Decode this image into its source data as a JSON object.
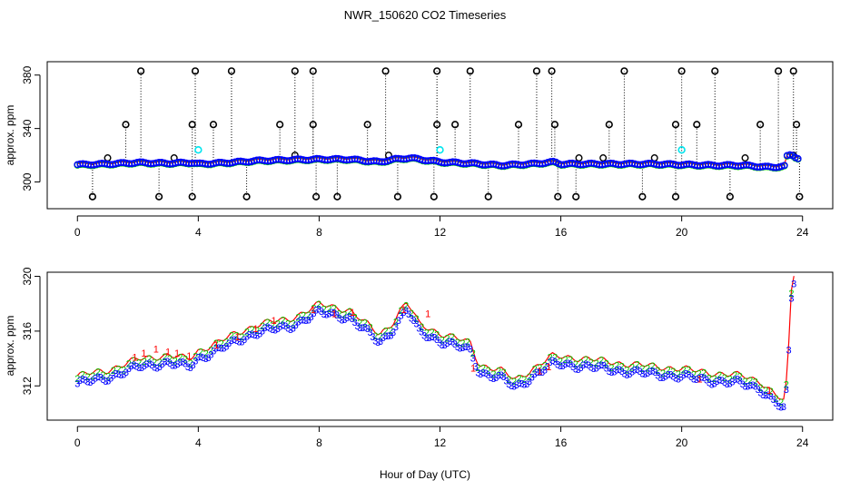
{
  "chart_data": {
    "title": "NWR_150620  CO2 Timeseries",
    "xlabel": "Hour of Day (UTC)",
    "colors": {
      "black": "#000000",
      "red": "#ff0000",
      "green": "#00cd00",
      "blue": "#0000ff",
      "cyan": "#00e5ee"
    },
    "panels": [
      {
        "name": "top",
        "type": "scatter",
        "ylabel": "approx. ppm",
        "xlim": [
          -1,
          25
        ],
        "ylim": [
          280,
          390
        ],
        "xticks": [
          0,
          4,
          8,
          12,
          16,
          20,
          24
        ],
        "xtick_labels": [
          "0",
          "4",
          "8",
          "12",
          "16",
          "20",
          "24"
        ],
        "yticks": [
          300,
          340,
          380
        ],
        "ytick_labels": [
          "300",
          "340",
          "380"
        ],
        "baseline_knots": [
          [
            0,
            313
          ],
          [
            1,
            313.5
          ],
          [
            2,
            314.5
          ],
          [
            3,
            314
          ],
          [
            3.8,
            314.5
          ],
          [
            4,
            313.5
          ],
          [
            5,
            314.5
          ],
          [
            6,
            316
          ],
          [
            7,
            316.5
          ],
          [
            8,
            317
          ],
          [
            9,
            317
          ],
          [
            10,
            315
          ],
          [
            10.5,
            317
          ],
          [
            11,
            318
          ],
          [
            12,
            315
          ],
          [
            13,
            314
          ],
          [
            14,
            312.5
          ],
          [
            15,
            313.5
          ],
          [
            15.8,
            315
          ],
          [
            16,
            313.5
          ],
          [
            17,
            313.5
          ],
          [
            18,
            313.5
          ],
          [
            19,
            313.5
          ],
          [
            20,
            313
          ],
          [
            21,
            312.5
          ],
          [
            22,
            312.5
          ],
          [
            23,
            311
          ],
          [
            23.4,
            312
          ],
          [
            23.5,
            320
          ],
          [
            23.7,
            320
          ],
          [
            23.8,
            318
          ]
        ],
        "high_outliers": [
          [
            2.1,
            383
          ],
          [
            3.9,
            383
          ],
          [
            5.1,
            383
          ],
          [
            7.2,
            383
          ],
          [
            7.8,
            383
          ],
          [
            10.2,
            383
          ],
          [
            11.9,
            383
          ],
          [
            13.0,
            383
          ],
          [
            15.2,
            383
          ],
          [
            15.7,
            383
          ],
          [
            18.1,
            383
          ],
          [
            20.0,
            383
          ],
          [
            21.1,
            383
          ],
          [
            23.2,
            383
          ],
          [
            23.7,
            383
          ]
        ],
        "mid_outliers": [
          [
            1.6,
            343
          ],
          [
            3.8,
            343
          ],
          [
            4.5,
            343
          ],
          [
            6.7,
            343
          ],
          [
            7.8,
            343
          ],
          [
            9.6,
            343
          ],
          [
            11.9,
            343
          ],
          [
            12.5,
            343
          ],
          [
            14.6,
            343
          ],
          [
            15.8,
            343
          ],
          [
            17.6,
            343
          ],
          [
            19.8,
            343
          ],
          [
            20.5,
            343
          ],
          [
            22.6,
            343
          ],
          [
            23.8,
            343
          ]
        ],
        "low_outliers": [
          [
            0.5,
            289
          ],
          [
            2.7,
            289
          ],
          [
            3.8,
            289
          ],
          [
            5.6,
            289
          ],
          [
            7.9,
            289
          ],
          [
            8.6,
            289
          ],
          [
            10.6,
            289
          ],
          [
            11.8,
            289
          ],
          [
            13.6,
            289
          ],
          [
            15.9,
            289
          ],
          [
            16.5,
            289
          ],
          [
            18.7,
            289
          ],
          [
            19.8,
            289
          ],
          [
            21.6,
            289
          ],
          [
            23.9,
            289
          ]
        ],
        "small_spikes": [
          [
            1.0,
            318
          ],
          [
            3.2,
            318
          ],
          [
            7.2,
            320
          ],
          [
            10.3,
            320
          ],
          [
            16.6,
            318
          ],
          [
            17.4,
            318
          ],
          [
            19.1,
            318
          ],
          [
            22.1,
            318
          ],
          [
            23.7,
            320
          ]
        ],
        "cyan_points": [
          [
            4.0,
            324
          ],
          [
            12.0,
            324
          ],
          [
            20.0,
            324
          ]
        ]
      },
      {
        "name": "bottom",
        "type": "scatter",
        "ylabel": "approx. ppm",
        "xlim": [
          -1,
          25
        ],
        "ylim": [
          309.5,
          320.3
        ],
        "xticks": [
          0,
          4,
          8,
          12,
          16,
          20,
          24
        ],
        "xtick_labels": [
          "0",
          "4",
          "8",
          "12",
          "16",
          "20",
          "24"
        ],
        "yticks": [
          312,
          316,
          320
        ],
        "ytick_labels": [
          "312",
          "316",
          "320"
        ],
        "baseline_knots": [
          [
            0,
            312.4
          ],
          [
            1,
            312.8
          ],
          [
            2,
            313.6
          ],
          [
            3,
            313.9
          ],
          [
            3.7,
            313.6
          ],
          [
            4,
            314.2
          ],
          [
            5,
            315.2
          ],
          [
            6,
            316.2
          ],
          [
            7,
            316.5
          ],
          [
            8,
            317.6
          ],
          [
            9,
            317.2
          ],
          [
            10,
            315.4
          ],
          [
            10.4,
            316.2
          ],
          [
            10.9,
            317.8
          ],
          [
            11.3,
            316.2
          ],
          [
            12,
            315.5
          ],
          [
            13,
            314.8
          ],
          [
            13.3,
            313.2
          ],
          [
            14,
            312.8
          ],
          [
            14.5,
            312.1
          ],
          [
            15,
            312.8
          ],
          [
            15.7,
            313.8
          ],
          [
            16,
            313.8
          ],
          [
            17,
            313.6
          ],
          [
            18,
            313.3
          ],
          [
            19,
            313.1
          ],
          [
            20,
            312.9
          ],
          [
            21,
            312.6
          ],
          [
            22,
            312.4
          ],
          [
            22.6,
            312.0
          ],
          [
            23,
            311.2
          ],
          [
            23.4,
            310.5
          ],
          [
            23.5,
            312.5
          ],
          [
            23.65,
            319.5
          ],
          [
            23.8,
            320.2
          ]
        ],
        "red_labels": [
          [
            1.9,
            314.1
          ],
          [
            2.2,
            314.4
          ],
          [
            2.6,
            314.7
          ],
          [
            3.0,
            314.5
          ],
          [
            3.3,
            314.4
          ],
          [
            3.7,
            314.2
          ],
          [
            4.6,
            315.0
          ],
          [
            5.3,
            315.6
          ],
          [
            5.9,
            316.2
          ],
          [
            6.5,
            316.8
          ],
          [
            7.8,
            317.6
          ],
          [
            8.5,
            317.3
          ],
          [
            9.1,
            317.4
          ],
          [
            10.8,
            317.6
          ],
          [
            11.6,
            317.3
          ],
          [
            13.1,
            313.3
          ],
          [
            15.3,
            313.1
          ],
          [
            15.6,
            313.4
          ],
          [
            20.6,
            312.5
          ],
          [
            22.9,
            311.7
          ]
        ]
      }
    ]
  }
}
